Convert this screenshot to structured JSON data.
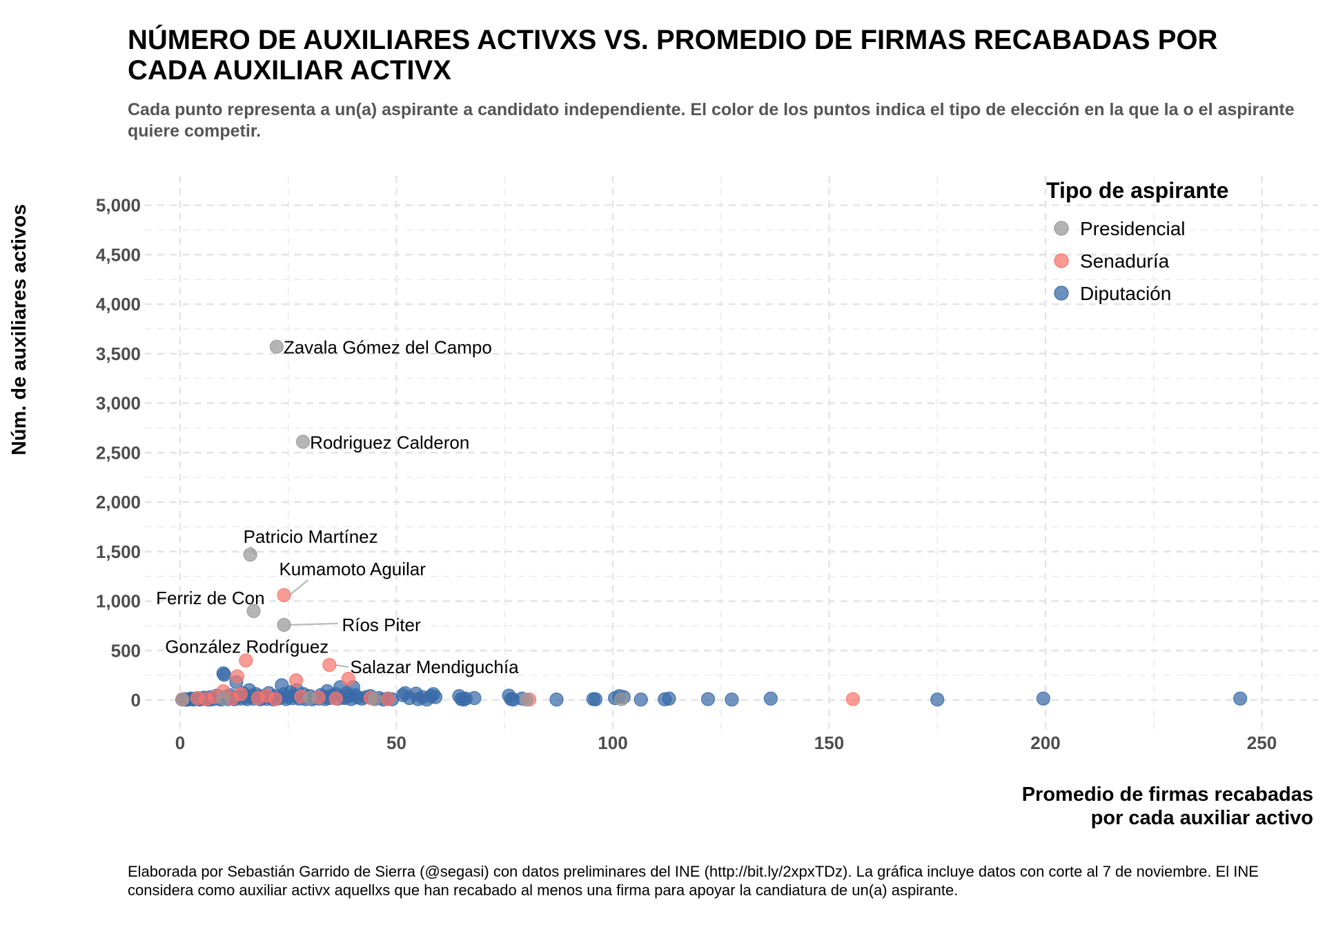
{
  "title": "NÚMERO DE AUXILIARES ACTIVXS VS. PROMEDIO DE FIRMAS RECABADAS POR CADA AUXILIAR ACTIVX",
  "subtitle": "Cada punto representa a un(a) aspirante a candidato independiente. El color de los puntos indica el tipo de elección en la que la o el aspirante quiere competir.",
  "caption": "Elaborada por Sebastián Garrido de Sierra (@segasi) con datos preliminares del INE (http://bit.ly/2xpxTDz). La gráfica incluye datos con corte al 7 de noviembre. El INE considera como auxiliar activx aquellxs que han recabado al menos una firma para apoyar la candiatura de un(a) aspirante.",
  "chart_data": {
    "type": "scatter",
    "xlabel": [
      "Promedio de firmas recabadas",
      "por cada auxiliar activo"
    ],
    "ylabel": "Núm. de auxiliares activos",
    "xlim": [
      -10,
      258
    ],
    "ylim": [
      -180,
      5250
    ],
    "xticks": [
      0,
      50,
      100,
      150,
      200,
      250
    ],
    "xtick_labels": [
      "0",
      "50",
      "100",
      "150",
      "200",
      "250"
    ],
    "yticks": [
      0,
      500,
      1000,
      1500,
      2000,
      2500,
      3000,
      3500,
      4000,
      4500,
      5000
    ],
    "ytick_labels": [
      "0",
      "500",
      "1,000",
      "1,500",
      "2,000",
      "2,500",
      "3,000",
      "3,500",
      "4,000",
      "4,500",
      "5,000"
    ],
    "grid": true,
    "legend": {
      "title": "Tipo de aspirante",
      "placement": "top-right",
      "entries": [
        {
          "label": "Presidencial",
          "color": "#999999"
        },
        {
          "label": "Senaduría",
          "color": "#F8766D"
        },
        {
          "label": "Diputación",
          "color": "#3A6BA8"
        }
      ]
    },
    "series": [
      {
        "name": "Presidencial",
        "color": "#999999",
        "points": [
          [
            22.3,
            3570
          ],
          [
            28.4,
            2610
          ],
          [
            16.2,
            1470
          ],
          [
            17,
            900
          ],
          [
            24,
            760
          ],
          [
            0.5,
            8
          ],
          [
            10,
            15
          ],
          [
            102,
            10
          ],
          [
            80,
            5
          ],
          [
            45,
            10
          ],
          [
            30,
            20
          ]
        ]
      },
      {
        "name": "Senaduría",
        "color": "#F8766D",
        "points": [
          [
            24,
            1060
          ],
          [
            15.2,
            400
          ],
          [
            34.5,
            355
          ],
          [
            13.2,
            240
          ],
          [
            38.9,
            215
          ],
          [
            26.8,
            200
          ],
          [
            10,
            90
          ],
          [
            155.5,
            10
          ],
          [
            80.7,
            5
          ],
          [
            0.5,
            5
          ],
          [
            4,
            20
          ],
          [
            6,
            10
          ],
          [
            8,
            30
          ],
          [
            12,
            15
          ],
          [
            14,
            60
          ],
          [
            18,
            20
          ],
          [
            20,
            45
          ],
          [
            22,
            10
          ],
          [
            28,
            35
          ],
          [
            32,
            25
          ],
          [
            36,
            15
          ],
          [
            44,
            20
          ],
          [
            48,
            10
          ]
        ]
      },
      {
        "name": "Diputación",
        "color": "#3A6BA8",
        "points": [
          [
            0.5,
            5
          ],
          [
            1,
            10
          ],
          [
            1.5,
            3
          ],
          [
            2,
            8
          ],
          [
            2.5,
            15
          ],
          [
            3,
            5
          ],
          [
            3.5,
            12
          ],
          [
            4,
            20
          ],
          [
            4.5,
            6
          ],
          [
            5,
            10
          ],
          [
            5.5,
            25
          ],
          [
            6,
            15
          ],
          [
            6.5,
            4
          ],
          [
            7,
            30
          ],
          [
            7.5,
            8
          ],
          [
            8,
            18
          ],
          [
            8.5,
            45
          ],
          [
            9,
            12
          ],
          [
            9.5,
            6
          ],
          [
            10,
            270
          ],
          [
            10.2,
            255
          ],
          [
            10.5,
            30
          ],
          [
            11,
            10
          ],
          [
            11.5,
            50
          ],
          [
            12,
            20
          ],
          [
            12.5,
            8
          ],
          [
            13,
            180
          ],
          [
            13.5,
            35
          ],
          [
            14,
            15
          ],
          [
            14.5,
            70
          ],
          [
            15,
            25
          ],
          [
            15.5,
            10
          ],
          [
            16,
            100
          ],
          [
            16.5,
            40
          ],
          [
            17,
            15
          ],
          [
            17.5,
            60
          ],
          [
            18,
            30
          ],
          [
            18.5,
            8
          ],
          [
            19,
            20
          ],
          [
            19.5,
            45
          ],
          [
            20,
            12
          ],
          [
            20.5,
            70
          ],
          [
            21,
            25
          ],
          [
            21.5,
            6
          ],
          [
            22,
            40
          ],
          [
            22.5,
            15
          ],
          [
            23,
            20
          ],
          [
            23.5,
            150
          ],
          [
            24,
            60
          ],
          [
            24.5,
            10
          ],
          [
            25,
            30
          ],
          [
            25.5,
            80
          ],
          [
            26,
            20
          ],
          [
            26.5,
            45
          ],
          [
            27,
            100
          ],
          [
            27.5,
            15
          ],
          [
            28,
            35
          ],
          [
            28.5,
            60
          ],
          [
            29,
            10
          ],
          [
            29.5,
            25
          ],
          [
            30,
            40
          ],
          [
            30.5,
            8
          ],
          [
            31,
            20
          ],
          [
            32,
            15
          ],
          [
            32.5,
            50
          ],
          [
            33,
            30
          ],
          [
            33.5,
            10
          ],
          [
            34,
            90
          ],
          [
            34.5,
            20
          ],
          [
            35,
            45
          ],
          [
            36,
            60
          ],
          [
            36.5,
            15
          ],
          [
            37,
            130
          ],
          [
            37.5,
            30
          ],
          [
            38,
            20
          ],
          [
            38.5,
            70
          ],
          [
            39,
            40
          ],
          [
            39.5,
            10
          ],
          [
            40,
            130
          ],
          [
            40.5,
            50
          ],
          [
            41,
            25
          ],
          [
            42,
            15
          ],
          [
            43,
            30
          ],
          [
            44,
            40
          ],
          [
            45,
            10
          ],
          [
            46,
            20
          ],
          [
            47,
            5
          ],
          [
            48,
            15
          ],
          [
            49,
            8
          ],
          [
            51.5,
            50
          ],
          [
            52,
            70
          ],
          [
            53,
            20
          ],
          [
            54.5,
            65
          ],
          [
            55,
            10
          ],
          [
            56,
            30
          ],
          [
            57,
            5
          ],
          [
            58,
            40
          ],
          [
            58.5,
            60
          ],
          [
            59,
            30
          ],
          [
            64.5,
            40
          ],
          [
            65,
            10
          ],
          [
            65.5,
            5
          ],
          [
            66,
            15
          ],
          [
            68,
            20
          ],
          [
            76,
            45
          ],
          [
            76.5,
            10
          ],
          [
            77,
            5
          ],
          [
            79,
            15
          ],
          [
            87,
            5
          ],
          [
            95.5,
            10
          ],
          [
            96,
            8
          ],
          [
            100.5,
            20
          ],
          [
            101.5,
            40
          ],
          [
            102.5,
            30
          ],
          [
            106.5,
            5
          ],
          [
            112,
            8
          ],
          [
            113,
            15
          ],
          [
            122,
            10
          ],
          [
            127.5,
            5
          ],
          [
            136.5,
            15
          ],
          [
            175,
            5
          ],
          [
            199.5,
            15
          ],
          [
            245,
            15
          ]
        ]
      }
    ],
    "annotations": [
      {
        "text": "Zavala Gómez del Campo",
        "x": 22.3,
        "y": 3570
      },
      {
        "text": "Rodriguez Calderon",
        "x": 28.4,
        "y": 2610
      },
      {
        "text": "Patricio Martínez",
        "x": 16.2,
        "y": 1470
      },
      {
        "text": "Kumamoto Aguilar",
        "x": 24,
        "y": 1060
      },
      {
        "text": "Ferriz de Con",
        "x": 17,
        "y": 900
      },
      {
        "text": "Ríos Piter",
        "x": 24,
        "y": 760
      },
      {
        "text": "González Rodríguez",
        "x": 15.2,
        "y": 400
      },
      {
        "text": "Salazar Mendiguchía",
        "x": 34.5,
        "y": 355
      }
    ]
  }
}
